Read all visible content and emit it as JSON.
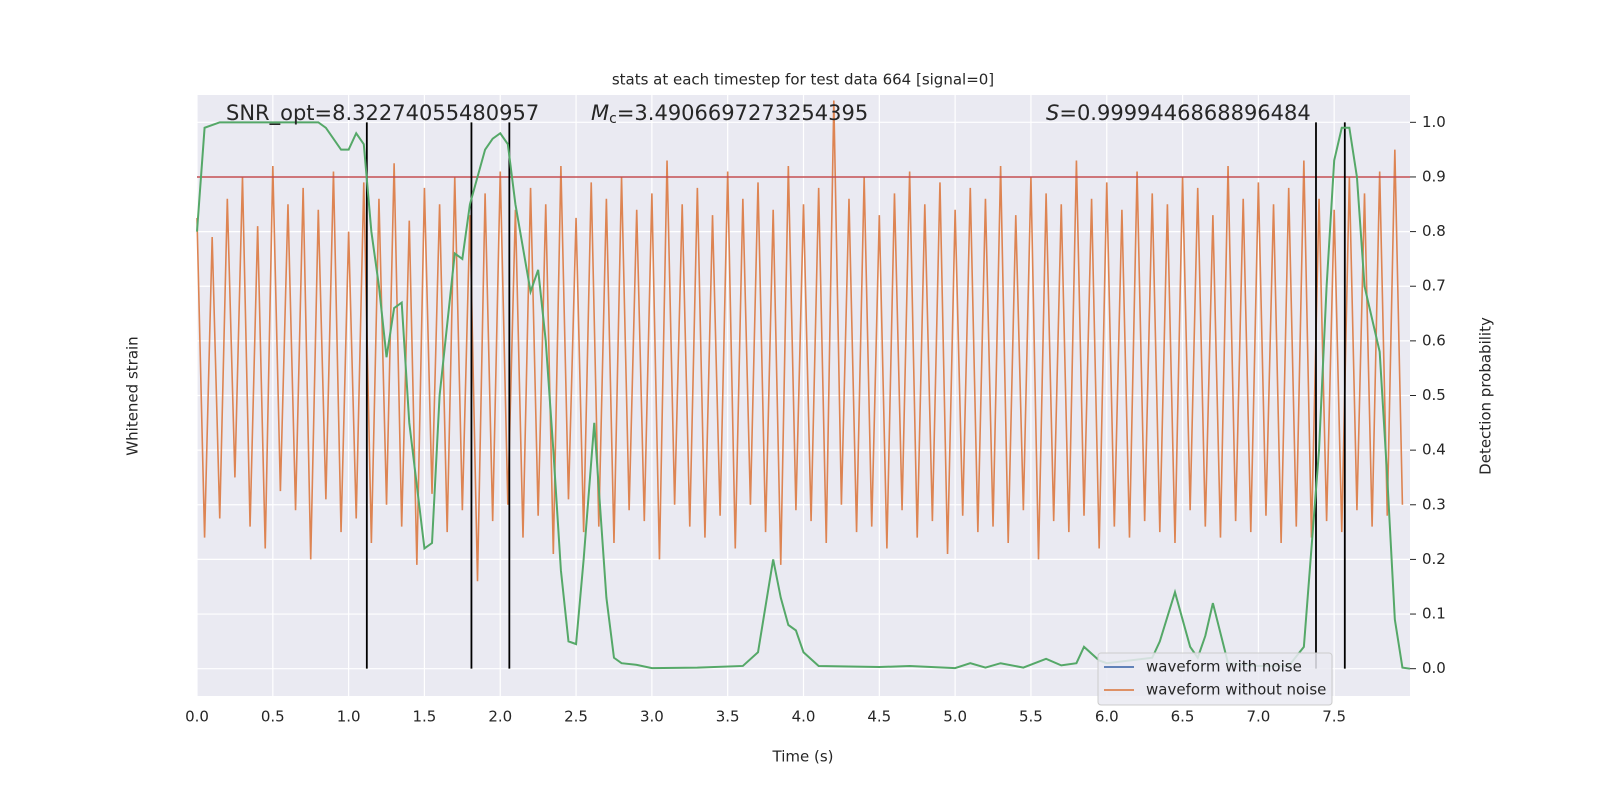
{
  "chart_data": {
    "type": "line",
    "title": "stats at each timestep for test data 664 [signal=0]",
    "xlabel": "Time (s)",
    "ylabel": "Whitened strain",
    "y2label": "Detection probability",
    "annotations": {
      "snr": "SNR_opt=8.32274055480957",
      "mc_symbol": "M",
      "mc_subscript": "c",
      "mc_text": "=3.4906697273254395",
      "s_symbol": "S",
      "s_text": "=0.9999446868896484"
    },
    "xlim": [
      0,
      8
    ],
    "xticks": [
      {
        "value": 0,
        "label": "0.0"
      },
      {
        "value": 0.5,
        "label": "0.5"
      },
      {
        "value": 1,
        "label": "1.0"
      },
      {
        "value": 1.5,
        "label": "1.5"
      },
      {
        "value": 2,
        "label": "2.0"
      },
      {
        "value": 2.5,
        "label": "2.5"
      },
      {
        "value": 3,
        "label": "3.0"
      },
      {
        "value": 3.5,
        "label": "3.5"
      },
      {
        "value": 4,
        "label": "4.0"
      },
      {
        "value": 4.5,
        "label": "4.5"
      },
      {
        "value": 5,
        "label": "5.0"
      },
      {
        "value": 5.5,
        "label": "5.5"
      },
      {
        "value": 6,
        "label": "6.0"
      },
      {
        "value": 6.5,
        "label": "6.5"
      },
      {
        "value": 7,
        "label": "7.0"
      },
      {
        "value": 7.5,
        "label": "7.5"
      }
    ],
    "ylim": [
      -1.2,
      1.0
    ],
    "y2lim": [
      -0.05,
      1.05
    ],
    "y2ticks": [
      {
        "value": 0,
        "label": "0.0"
      },
      {
        "value": 0.1,
        "label": "0.1"
      },
      {
        "value": 0.2,
        "label": "0.2"
      },
      {
        "value": 0.3,
        "label": "0.3"
      },
      {
        "value": 0.4,
        "label": "0.4"
      },
      {
        "value": 0.5,
        "label": "0.5"
      },
      {
        "value": 0.6,
        "label": "0.6"
      },
      {
        "value": 0.7,
        "label": "0.7"
      },
      {
        "value": 0.8,
        "label": "0.8"
      },
      {
        "value": 0.9,
        "label": "0.9"
      },
      {
        "value": 1,
        "label": "1.0"
      }
    ],
    "grid": true,
    "legend": "lower right",
    "series": [
      {
        "name": "waveform with noise",
        "color": "#4c72b0"
      },
      {
        "name": "waveform without noise",
        "color": "#dd8452",
        "x": [
          0,
          0.05,
          0.1,
          0.15,
          0.2,
          0.25,
          0.3,
          0.35,
          0.4,
          0.45,
          0.5,
          0.55,
          0.6,
          0.65,
          0.7,
          0.75,
          0.8,
          0.85,
          0.9,
          0.95,
          1,
          1.05,
          1.1,
          1.15,
          1.2,
          1.25,
          1.3,
          1.35,
          1.4,
          1.45,
          1.5,
          1.55,
          1.6,
          1.65,
          1.7,
          1.75,
          1.8,
          1.85,
          1.9,
          1.95,
          2,
          2.05,
          2.1,
          2.15,
          2.2,
          2.25,
          2.3,
          2.35,
          2.4,
          2.45,
          2.5,
          2.55,
          2.6,
          2.65,
          2.7,
          2.75,
          2.8,
          2.85,
          2.9,
          2.95,
          3,
          3.05,
          3.1,
          3.15,
          3.2,
          3.25,
          3.3,
          3.35,
          3.4,
          3.45,
          3.5,
          3.55,
          3.6,
          3.65,
          3.7,
          3.75,
          3.8,
          3.85,
          3.9,
          3.95,
          4,
          4.05,
          4.1,
          4.15,
          4.2,
          4.25,
          4.3,
          4.35,
          4.4,
          4.45,
          4.5,
          4.55,
          4.6,
          4.65,
          4.7,
          4.75,
          4.8,
          4.85,
          4.9,
          4.95,
          5,
          5.05,
          5.1,
          5.15,
          5.2,
          5.25,
          5.3,
          5.35,
          5.4,
          5.45,
          5.5,
          5.55,
          5.6,
          5.65,
          5.7,
          5.75,
          5.8,
          5.85,
          5.9,
          5.95,
          6,
          6.05,
          6.1,
          6.15,
          6.2,
          6.25,
          6.3,
          6.35,
          6.4,
          6.45,
          6.5,
          6.55,
          6.6,
          6.65,
          6.7,
          6.75,
          6.8,
          6.85,
          6.9,
          6.95,
          7,
          7.05,
          7.1,
          7.15,
          7.2,
          7.25,
          7.3,
          7.35,
          7.4,
          7.45,
          7.5,
          7.55,
          7.6,
          7.65,
          7.7,
          7.75,
          7.8,
          7.85,
          7.9,
          7.95
        ],
        "values": [
          0.55,
          -0.62,
          0.48,
          -0.55,
          0.62,
          -0.4,
          0.7,
          -0.58,
          0.52,
          -0.66,
          0.74,
          -0.45,
          0.6,
          -0.52,
          0.66,
          -0.7,
          0.58,
          -0.48,
          0.72,
          -0.6,
          0.5,
          -0.55,
          0.68,
          -0.64,
          0.62,
          -0.5,
          0.75,
          -0.58,
          0.54,
          -0.72,
          0.66,
          -0.46,
          0.6,
          -0.6,
          0.7,
          -0.52,
          0.56,
          -0.78,
          0.64,
          -0.56,
          0.72,
          -0.5,
          0.58,
          -0.62,
          0.66,
          -0.54,
          0.6,
          -0.68,
          0.74,
          -0.48,
          0.55,
          -0.6,
          0.68,
          -0.58,
          0.62,
          -0.64,
          0.7,
          -0.52,
          0.58,
          -0.56,
          0.64,
          -0.7,
          0.76,
          -0.5,
          0.6,
          -0.58,
          0.66,
          -0.62,
          0.56,
          -0.54,
          0.72,
          -0.66,
          0.62,
          -0.5,
          0.68,
          -0.6,
          0.58,
          -0.72,
          0.74,
          -0.52,
          0.6,
          -0.56,
          0.66,
          -0.64,
          0.98,
          -0.5,
          0.62,
          -0.6,
          0.7,
          -0.58,
          0.56,
          -0.66,
          0.64,
          -0.52,
          0.72,
          -0.62,
          0.6,
          -0.56,
          0.68,
          -0.68,
          0.58,
          -0.54,
          0.66,
          -0.6,
          0.62,
          -0.58,
          0.74,
          -0.64,
          0.56,
          -0.52,
          0.7,
          -0.7,
          0.64,
          -0.56,
          0.6,
          -0.6,
          0.76,
          -0.54,
          0.62,
          -0.66,
          0.68,
          -0.58,
          0.58,
          -0.62,
          0.72,
          -0.56,
          0.64,
          -0.6,
          0.6,
          -0.64,
          0.7,
          -0.52,
          0.66,
          -0.58,
          0.56,
          -0.62,
          0.74,
          -0.56,
          0.62,
          -0.6,
          0.68,
          -0.54,
          0.6,
          -0.64,
          0.66,
          -0.58,
          0.76,
          -0.62,
          0.62,
          -0.56,
          0.58,
          -0.6,
          0.7,
          -0.52,
          0.64,
          -0.58,
          0.72,
          -0.54,
          0.8,
          -0.5
        ]
      }
    ],
    "probability": {
      "color": "#55a868",
      "axis": "y2",
      "x": [
        0,
        0.05,
        0.15,
        0.3,
        0.5,
        0.7,
        0.8,
        0.85,
        0.95,
        1,
        1.05,
        1.1,
        1.15,
        1.2,
        1.25,
        1.3,
        1.35,
        1.4,
        1.5,
        1.55,
        1.6,
        1.7,
        1.75,
        1.8,
        1.9,
        1.95,
        2,
        2.05,
        2.1,
        2.2,
        2.25,
        2.3,
        2.35,
        2.4,
        2.45,
        2.5,
        2.55,
        2.62,
        2.7,
        2.75,
        2.8,
        2.9,
        3,
        3.3,
        3.6,
        3.7,
        3.8,
        3.85,
        3.9,
        3.95,
        4,
        4.1,
        4.5,
        4.7,
        5,
        5.1,
        5.2,
        5.3,
        5.45,
        5.6,
        5.7,
        5.8,
        5.85,
        5.95,
        6,
        6.3,
        6.35,
        6.45,
        6.55,
        6.6,
        6.65,
        6.7,
        6.8,
        7,
        7.2,
        7.3,
        7.4,
        7.45,
        7.5,
        7.55,
        7.6,
        7.65,
        7.7,
        7.8,
        7.85,
        7.9,
        7.95,
        8
      ],
      "values": [
        0.8,
        0.99,
        1.0,
        1.0,
        1.0,
        1.0,
        1.0,
        0.99,
        0.95,
        0.95,
        0.98,
        0.96,
        0.8,
        0.7,
        0.57,
        0.66,
        0.67,
        0.45,
        0.22,
        0.23,
        0.5,
        0.76,
        0.75,
        0.85,
        0.95,
        0.97,
        0.98,
        0.96,
        0.85,
        0.69,
        0.73,
        0.6,
        0.4,
        0.18,
        0.05,
        0.045,
        0.2,
        0.45,
        0.13,
        0.02,
        0.01,
        0.007,
        0.001,
        0.002,
        0.005,
        0.03,
        0.2,
        0.13,
        0.08,
        0.07,
        0.03,
        0.005,
        0.003,
        0.005,
        0.001,
        0.01,
        0.002,
        0.01,
        0.002,
        0.018,
        0.006,
        0.01,
        0.04,
        0.015,
        0.01,
        0.02,
        0.05,
        0.14,
        0.04,
        0.02,
        0.06,
        0.12,
        0.01,
        0.005,
        0.005,
        0.04,
        0.4,
        0.7,
        0.93,
        0.99,
        0.99,
        0.9,
        0.7,
        0.58,
        0.35,
        0.09,
        0.002,
        0.0
      ]
    },
    "threshold": 0.9,
    "threshold_color": "#c44e52",
    "markers": [
      1.12,
      1.81,
      2.06,
      7.38,
      7.57
    ],
    "marker_span": [
      0,
      1
    ],
    "marker_color": "#000000"
  }
}
